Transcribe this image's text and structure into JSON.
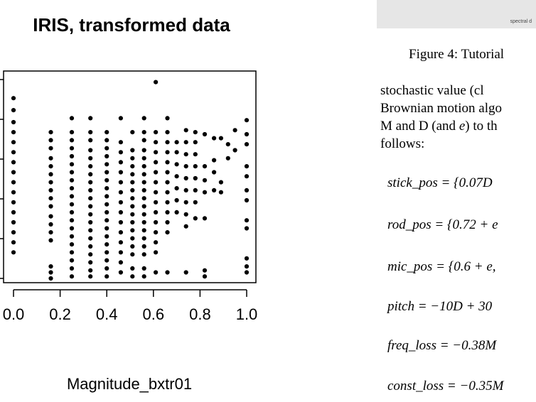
{
  "chart_data": {
    "type": "scatter",
    "title": "IRIS, transformed data",
    "xlabel": "Magnitude_bxtr01",
    "ylabel": "",
    "xlim": [
      0.0,
      1.0
    ],
    "xticks": [
      "0.0",
      "0.2",
      "0.4",
      "0.6",
      "0.8",
      "1.0"
    ],
    "ylim": [
      0.0,
      1.0
    ],
    "grid": false,
    "series": [
      {
        "points": [
          [
            0.0,
            0.9
          ],
          [
            0.0,
            0.84
          ],
          [
            0.0,
            0.78
          ],
          [
            0.0,
            0.73
          ],
          [
            0.0,
            0.68
          ],
          [
            0.0,
            0.63
          ],
          [
            0.0,
            0.58
          ],
          [
            0.0,
            0.53
          ],
          [
            0.0,
            0.48
          ],
          [
            0.0,
            0.43
          ],
          [
            0.0,
            0.38
          ],
          [
            0.0,
            0.33
          ],
          [
            0.0,
            0.28
          ],
          [
            0.0,
            0.23
          ],
          [
            0.0,
            0.18
          ],
          [
            0.0,
            0.13
          ],
          [
            0.16,
            0.73
          ],
          [
            0.16,
            0.69
          ],
          [
            0.16,
            0.65
          ],
          [
            0.16,
            0.6
          ],
          [
            0.16,
            0.56
          ],
          [
            0.16,
            0.52
          ],
          [
            0.16,
            0.48
          ],
          [
            0.16,
            0.44
          ],
          [
            0.16,
            0.4
          ],
          [
            0.16,
            0.36
          ],
          [
            0.16,
            0.31
          ],
          [
            0.16,
            0.27
          ],
          [
            0.16,
            0.23
          ],
          [
            0.16,
            0.19
          ],
          [
            0.16,
            0.06
          ],
          [
            0.16,
            0.03
          ],
          [
            0.16,
            0.0
          ],
          [
            0.25,
            0.8
          ],
          [
            0.25,
            0.73
          ],
          [
            0.25,
            0.69
          ],
          [
            0.25,
            0.65
          ],
          [
            0.25,
            0.61
          ],
          [
            0.25,
            0.57
          ],
          [
            0.25,
            0.53
          ],
          [
            0.25,
            0.49
          ],
          [
            0.25,
            0.45
          ],
          [
            0.25,
            0.41
          ],
          [
            0.25,
            0.37
          ],
          [
            0.25,
            0.33
          ],
          [
            0.25,
            0.29
          ],
          [
            0.25,
            0.25
          ],
          [
            0.25,
            0.21
          ],
          [
            0.25,
            0.17
          ],
          [
            0.25,
            0.13
          ],
          [
            0.25,
            0.09
          ],
          [
            0.25,
            0.05
          ],
          [
            0.25,
            0.01
          ],
          [
            0.33,
            0.8
          ],
          [
            0.33,
            0.73
          ],
          [
            0.33,
            0.69
          ],
          [
            0.33,
            0.64
          ],
          [
            0.33,
            0.6
          ],
          [
            0.33,
            0.56
          ],
          [
            0.33,
            0.52
          ],
          [
            0.33,
            0.48
          ],
          [
            0.33,
            0.44
          ],
          [
            0.33,
            0.4
          ],
          [
            0.33,
            0.36
          ],
          [
            0.33,
            0.32
          ],
          [
            0.33,
            0.28
          ],
          [
            0.33,
            0.24
          ],
          [
            0.33,
            0.2
          ],
          [
            0.33,
            0.16
          ],
          [
            0.33,
            0.12
          ],
          [
            0.33,
            0.08
          ],
          [
            0.33,
            0.04
          ],
          [
            0.33,
            0.01
          ],
          [
            0.4,
            0.73
          ],
          [
            0.4,
            0.69
          ],
          [
            0.4,
            0.65
          ],
          [
            0.4,
            0.61
          ],
          [
            0.4,
            0.57
          ],
          [
            0.4,
            0.53
          ],
          [
            0.4,
            0.49
          ],
          [
            0.4,
            0.45
          ],
          [
            0.4,
            0.41
          ],
          [
            0.4,
            0.37
          ],
          [
            0.4,
            0.33
          ],
          [
            0.4,
            0.29
          ],
          [
            0.4,
            0.25
          ],
          [
            0.4,
            0.21
          ],
          [
            0.4,
            0.17
          ],
          [
            0.4,
            0.13
          ],
          [
            0.4,
            0.09
          ],
          [
            0.4,
            0.05
          ],
          [
            0.4,
            0.01
          ],
          [
            0.46,
            0.8
          ],
          [
            0.46,
            0.68
          ],
          [
            0.46,
            0.63
          ],
          [
            0.46,
            0.58
          ],
          [
            0.46,
            0.53
          ],
          [
            0.46,
            0.48
          ],
          [
            0.46,
            0.43
          ],
          [
            0.46,
            0.38
          ],
          [
            0.46,
            0.33
          ],
          [
            0.46,
            0.28
          ],
          [
            0.46,
            0.23
          ],
          [
            0.46,
            0.18
          ],
          [
            0.46,
            0.13
          ],
          [
            0.46,
            0.08
          ],
          [
            0.46,
            0.03
          ],
          [
            0.51,
            0.73
          ],
          [
            0.51,
            0.64
          ],
          [
            0.51,
            0.6
          ],
          [
            0.51,
            0.56
          ],
          [
            0.51,
            0.52
          ],
          [
            0.51,
            0.48
          ],
          [
            0.51,
            0.44
          ],
          [
            0.51,
            0.4
          ],
          [
            0.51,
            0.36
          ],
          [
            0.51,
            0.32
          ],
          [
            0.51,
            0.28
          ],
          [
            0.51,
            0.24
          ],
          [
            0.51,
            0.2
          ],
          [
            0.51,
            0.16
          ],
          [
            0.51,
            0.12
          ],
          [
            0.51,
            0.05
          ],
          [
            0.51,
            0.01
          ],
          [
            0.56,
            0.8
          ],
          [
            0.56,
            0.73
          ],
          [
            0.56,
            0.69
          ],
          [
            0.56,
            0.64
          ],
          [
            0.56,
            0.6
          ],
          [
            0.56,
            0.56
          ],
          [
            0.56,
            0.52
          ],
          [
            0.56,
            0.48
          ],
          [
            0.56,
            0.44
          ],
          [
            0.56,
            0.4
          ],
          [
            0.56,
            0.36
          ],
          [
            0.56,
            0.32
          ],
          [
            0.56,
            0.28
          ],
          [
            0.56,
            0.24
          ],
          [
            0.56,
            0.2
          ],
          [
            0.56,
            0.16
          ],
          [
            0.56,
            0.12
          ],
          [
            0.56,
            0.05
          ],
          [
            0.56,
            0.01
          ],
          [
            0.61,
            0.98
          ],
          [
            0.61,
            0.73
          ],
          [
            0.61,
            0.68
          ],
          [
            0.61,
            0.63
          ],
          [
            0.61,
            0.58
          ],
          [
            0.61,
            0.53
          ],
          [
            0.61,
            0.48
          ],
          [
            0.61,
            0.43
          ],
          [
            0.61,
            0.38
          ],
          [
            0.61,
            0.33
          ],
          [
            0.61,
            0.28
          ],
          [
            0.61,
            0.23
          ],
          [
            0.61,
            0.18
          ],
          [
            0.61,
            0.13
          ],
          [
            0.61,
            0.03
          ],
          [
            0.66,
            0.8
          ],
          [
            0.66,
            0.73
          ],
          [
            0.66,
            0.68
          ],
          [
            0.66,
            0.63
          ],
          [
            0.66,
            0.58
          ],
          [
            0.66,
            0.53
          ],
          [
            0.66,
            0.48
          ],
          [
            0.66,
            0.43
          ],
          [
            0.66,
            0.38
          ],
          [
            0.66,
            0.33
          ],
          [
            0.66,
            0.28
          ],
          [
            0.66,
            0.23
          ],
          [
            0.66,
            0.03
          ],
          [
            0.7,
            0.68
          ],
          [
            0.7,
            0.63
          ],
          [
            0.7,
            0.57
          ],
          [
            0.7,
            0.51
          ],
          [
            0.7,
            0.45
          ],
          [
            0.7,
            0.39
          ],
          [
            0.7,
            0.33
          ],
          [
            0.74,
            0.74
          ],
          [
            0.74,
            0.68
          ],
          [
            0.74,
            0.62
          ],
          [
            0.74,
            0.56
          ],
          [
            0.74,
            0.5
          ],
          [
            0.74,
            0.44
          ],
          [
            0.74,
            0.38
          ],
          [
            0.74,
            0.32
          ],
          [
            0.74,
            0.26
          ],
          [
            0.74,
            0.03
          ],
          [
            0.78,
            0.73
          ],
          [
            0.78,
            0.68
          ],
          [
            0.78,
            0.62
          ],
          [
            0.78,
            0.56
          ],
          [
            0.78,
            0.5
          ],
          [
            0.78,
            0.44
          ],
          [
            0.78,
            0.38
          ],
          [
            0.78,
            0.3
          ],
          [
            0.82,
            0.72
          ],
          [
            0.82,
            0.56
          ],
          [
            0.82,
            0.49
          ],
          [
            0.82,
            0.43
          ],
          [
            0.82,
            0.3
          ],
          [
            0.82,
            0.04
          ],
          [
            0.82,
            0.01
          ],
          [
            0.86,
            0.7
          ],
          [
            0.86,
            0.59
          ],
          [
            0.86,
            0.53
          ],
          [
            0.86,
            0.44
          ],
          [
            0.89,
            0.7
          ],
          [
            0.89,
            0.48
          ],
          [
            0.89,
            0.43
          ],
          [
            0.92,
            0.67
          ],
          [
            0.92,
            0.6
          ],
          [
            0.95,
            0.74
          ],
          [
            0.95,
            0.64
          ],
          [
            1.0,
            0.79
          ],
          [
            1.0,
            0.72
          ],
          [
            1.0,
            0.67
          ],
          [
            1.0,
            0.56
          ],
          [
            1.0,
            0.51
          ],
          [
            1.0,
            0.44
          ],
          [
            1.0,
            0.39
          ],
          [
            1.0,
            0.29
          ],
          [
            1.0,
            0.25
          ],
          [
            1.0,
            0.1
          ],
          [
            1.0,
            0.06
          ],
          [
            1.0,
            0.03
          ]
        ]
      }
    ]
  },
  "figure_image": {
    "tiny_label": "spectral d"
  },
  "caption": "Figure 4: Tutorial",
  "paragraph": {
    "line1": "stochastic value (cl",
    "line2": "Brownian motion algo",
    "line3_a": "M and D (and ",
    "line3_e": "e",
    "line3_b": ") to th",
    "line4": "follows:"
  },
  "equations": {
    "eq1": "stick_pos = {0.07D",
    "eq2": "rod_pos = {0.72 + e",
    "eq3": "mic_pos = {0.6 + e,",
    "eq4": "pitch = −10D + 30",
    "eq5": "freq_loss = −0.38M",
    "eq6": "const_loss = −0.35M"
  }
}
